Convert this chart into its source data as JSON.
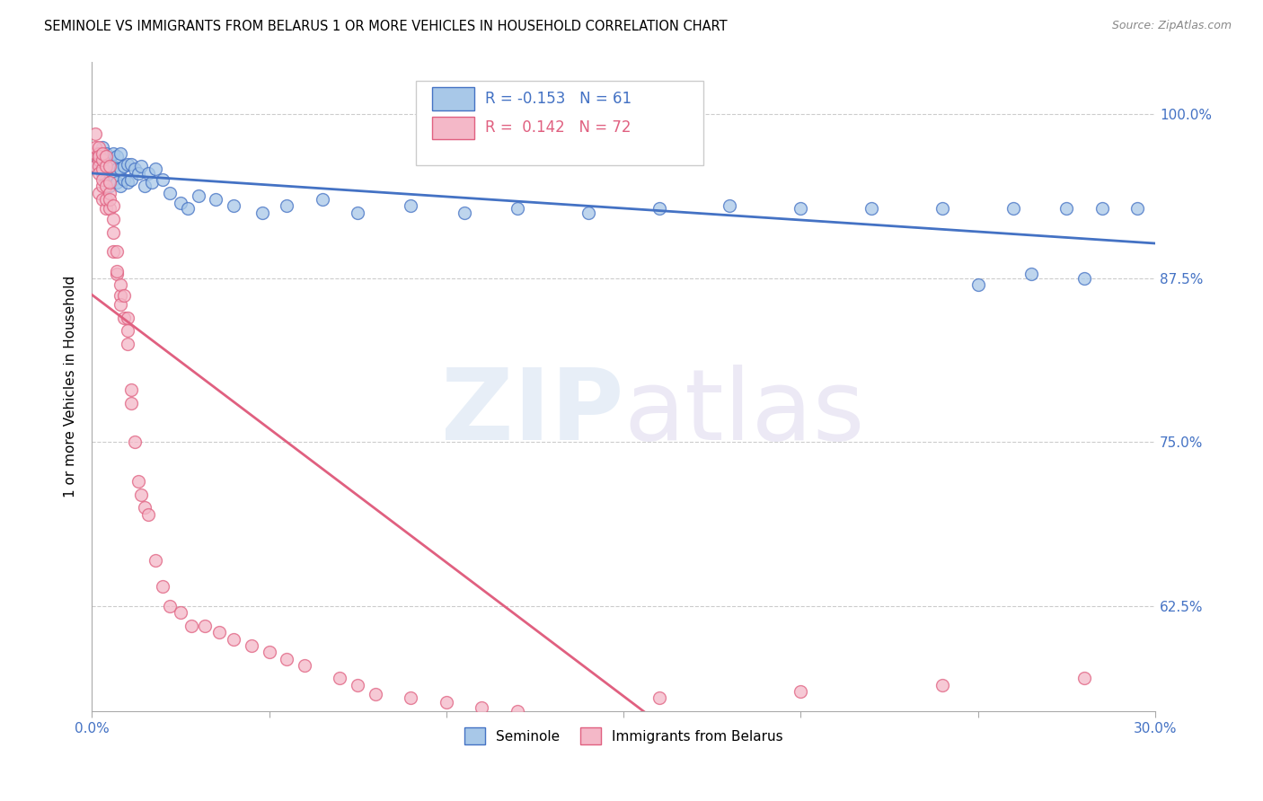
{
  "title": "SEMINOLE VS IMMIGRANTS FROM BELARUS 1 OR MORE VEHICLES IN HOUSEHOLD CORRELATION CHART",
  "source": "Source: ZipAtlas.com",
  "ylabel": "1 or more Vehicles in Household",
  "ytick_labels": [
    "62.5%",
    "75.0%",
    "87.5%",
    "100.0%"
  ],
  "ytick_values": [
    0.625,
    0.75,
    0.875,
    1.0
  ],
  "xlim": [
    0.0,
    0.3
  ],
  "ylim": [
    0.545,
    1.04
  ],
  "legend_seminole": "Seminole",
  "legend_belarus": "Immigrants from Belarus",
  "R_seminole": -0.153,
  "N_seminole": 61,
  "R_belarus": 0.142,
  "N_belarus": 72,
  "color_seminole": "#a8c8e8",
  "color_seminole_line": "#4472c4",
  "color_belarus": "#f4b8c8",
  "color_belarus_line": "#e06080",
  "seminole_x": [
    0.001,
    0.002,
    0.002,
    0.003,
    0.003,
    0.003,
    0.004,
    0.004,
    0.004,
    0.005,
    0.005,
    0.005,
    0.006,
    0.006,
    0.006,
    0.007,
    0.007,
    0.007,
    0.008,
    0.008,
    0.008,
    0.009,
    0.009,
    0.01,
    0.01,
    0.011,
    0.011,
    0.012,
    0.013,
    0.014,
    0.015,
    0.016,
    0.017,
    0.018,
    0.02,
    0.022,
    0.025,
    0.027,
    0.03,
    0.035,
    0.04,
    0.048,
    0.055,
    0.065,
    0.075,
    0.09,
    0.105,
    0.12,
    0.14,
    0.16,
    0.18,
    0.2,
    0.22,
    0.24,
    0.26,
    0.275,
    0.285,
    0.295,
    0.28,
    0.265,
    0.25
  ],
  "seminole_y": [
    0.96,
    0.965,
    0.97,
    0.955,
    0.96,
    0.975,
    0.95,
    0.96,
    0.97,
    0.945,
    0.955,
    0.965,
    0.95,
    0.96,
    0.97,
    0.948,
    0.958,
    0.968,
    0.945,
    0.958,
    0.97,
    0.95,
    0.96,
    0.948,
    0.962,
    0.95,
    0.962,
    0.958,
    0.955,
    0.96,
    0.945,
    0.955,
    0.948,
    0.958,
    0.95,
    0.94,
    0.932,
    0.928,
    0.938,
    0.935,
    0.93,
    0.925,
    0.93,
    0.935,
    0.925,
    0.93,
    0.925,
    0.928,
    0.925,
    0.928,
    0.93,
    0.928,
    0.928,
    0.928,
    0.928,
    0.928,
    0.928,
    0.928,
    0.875,
    0.878,
    0.87
  ],
  "belarus_x": [
    0.001,
    0.001,
    0.001,
    0.001,
    0.002,
    0.002,
    0.002,
    0.002,
    0.002,
    0.002,
    0.002,
    0.003,
    0.003,
    0.003,
    0.003,
    0.003,
    0.003,
    0.004,
    0.004,
    0.004,
    0.004,
    0.004,
    0.005,
    0.005,
    0.005,
    0.005,
    0.005,
    0.006,
    0.006,
    0.006,
    0.006,
    0.007,
    0.007,
    0.007,
    0.008,
    0.008,
    0.008,
    0.009,
    0.009,
    0.01,
    0.01,
    0.01,
    0.011,
    0.011,
    0.012,
    0.013,
    0.014,
    0.015,
    0.016,
    0.018,
    0.02,
    0.022,
    0.025,
    0.028,
    0.032,
    0.036,
    0.04,
    0.045,
    0.05,
    0.055,
    0.06,
    0.07,
    0.075,
    0.08,
    0.09,
    0.1,
    0.11,
    0.12,
    0.16,
    0.2,
    0.24,
    0.28
  ],
  "belarus_y": [
    0.97,
    0.96,
    0.975,
    0.985,
    0.965,
    0.97,
    0.975,
    0.96,
    0.968,
    0.94,
    0.955,
    0.958,
    0.965,
    0.97,
    0.945,
    0.935,
    0.95,
    0.96,
    0.945,
    0.968,
    0.928,
    0.935,
    0.96,
    0.94,
    0.948,
    0.928,
    0.935,
    0.93,
    0.92,
    0.91,
    0.895,
    0.878,
    0.895,
    0.88,
    0.862,
    0.87,
    0.855,
    0.862,
    0.845,
    0.825,
    0.835,
    0.845,
    0.78,
    0.79,
    0.75,
    0.72,
    0.71,
    0.7,
    0.695,
    0.66,
    0.64,
    0.625,
    0.62,
    0.61,
    0.61,
    0.605,
    0.6,
    0.595,
    0.59,
    0.585,
    0.58,
    0.57,
    0.565,
    0.558,
    0.555,
    0.552,
    0.548,
    0.545,
    0.555,
    0.56,
    0.565,
    0.57
  ]
}
